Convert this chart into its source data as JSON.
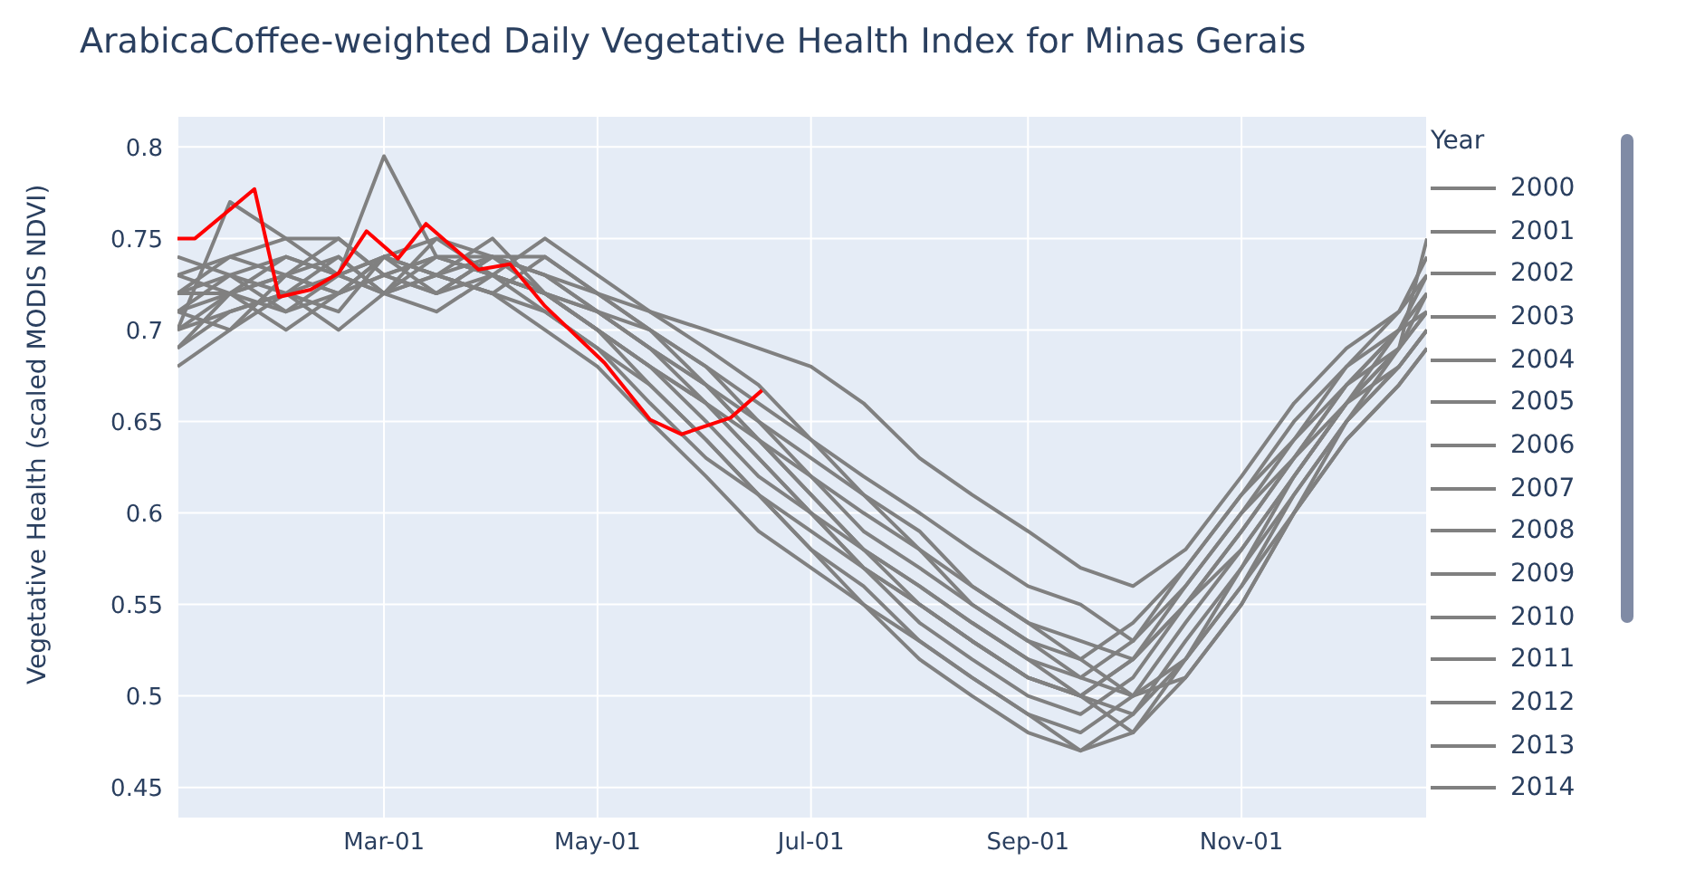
{
  "chart_data": {
    "type": "line",
    "title": "ArabicaCoffee-weighted Daily Vegetative Health Index for Minas Gerais",
    "ylabel": "Vegetative Health (scaled MODIS NDVI)",
    "legend_title": "Year",
    "legend": "right",
    "grid": true,
    "x": [
      "--01-01",
      "--01-16",
      "--02-01",
      "--02-16",
      "--03-01",
      "--03-16",
      "--04-01",
      "--04-16",
      "--05-01",
      "--05-16",
      "--06-01",
      "--06-16",
      "--07-01",
      "--07-16",
      "--08-01",
      "--08-16",
      "--09-01",
      "--09-16",
      "--10-01",
      "--10-16",
      "--11-01",
      "--11-16",
      "--12-01",
      "--12-16",
      "--12-24"
    ],
    "xlim": [
      "--01-01",
      "--12-24"
    ],
    "xticks": [
      {
        "value": "--03-01",
        "label": "Mar-01"
      },
      {
        "value": "--05-01",
        "label": "May-01"
      },
      {
        "value": "--07-01",
        "label": "Jul-01"
      },
      {
        "value": "--09-01",
        "label": "Sep-01"
      },
      {
        "value": "--11-01",
        "label": "Nov-01"
      }
    ],
    "ylim": [
      0.433,
      0.817
    ],
    "yticks": [
      0.45,
      0.5,
      0.55,
      0.6,
      0.65,
      0.7,
      0.75,
      0.8
    ],
    "series": [
      {
        "name": "2000",
        "color": "#808080",
        "values": [
          0.72,
          0.73,
          0.74,
          0.73,
          0.74,
          0.73,
          0.72,
          0.71,
          0.69,
          0.66,
          0.63,
          0.61,
          0.59,
          0.57,
          0.55,
          0.53,
          0.51,
          0.5,
          0.52,
          0.55,
          0.58,
          0.62,
          0.66,
          0.69,
          0.71
        ]
      },
      {
        "name": "2001",
        "color": "#808080",
        "values": [
          0.7,
          0.77,
          0.75,
          0.75,
          0.73,
          0.74,
          0.74,
          0.72,
          0.7,
          0.68,
          0.66,
          0.64,
          0.62,
          0.6,
          0.58,
          0.56,
          0.54,
          0.53,
          0.52,
          0.55,
          0.59,
          0.63,
          0.67,
          0.7,
          0.73
        ]
      },
      {
        "name": "2002",
        "color": "#808080",
        "values": [
          0.69,
          0.72,
          0.73,
          0.74,
          0.72,
          0.75,
          0.74,
          0.73,
          0.71,
          0.69,
          0.67,
          0.64,
          0.61,
          0.58,
          0.56,
          0.54,
          0.52,
          0.5,
          0.49,
          0.52,
          0.56,
          0.61,
          0.65,
          0.68,
          0.7
        ]
      },
      {
        "name": "2003",
        "color": "#808080",
        "values": [
          0.73,
          0.72,
          0.7,
          0.72,
          0.74,
          0.73,
          0.75,
          0.72,
          0.7,
          0.67,
          0.64,
          0.61,
          0.58,
          0.56,
          0.53,
          0.51,
          0.49,
          0.47,
          0.49,
          0.53,
          0.57,
          0.62,
          0.66,
          0.7,
          0.72
        ]
      },
      {
        "name": "2004",
        "color": "#808080",
        "values": [
          0.71,
          0.7,
          0.72,
          0.73,
          0.795,
          0.74,
          0.73,
          0.72,
          0.71,
          0.7,
          0.68,
          0.66,
          0.64,
          0.61,
          0.58,
          0.55,
          0.53,
          0.51,
          0.5,
          0.51,
          0.55,
          0.6,
          0.64,
          0.67,
          0.69
        ]
      },
      {
        "name": "2005",
        "color": "#808080",
        "values": [
          0.68,
          0.7,
          0.73,
          0.72,
          0.73,
          0.72,
          0.74,
          0.74,
          0.72,
          0.7,
          0.68,
          0.65,
          0.62,
          0.59,
          0.57,
          0.55,
          0.53,
          0.52,
          0.54,
          0.57,
          0.61,
          0.64,
          0.67,
          0.69,
          0.71
        ]
      },
      {
        "name": "2006",
        "color": "#808080",
        "values": [
          0.74,
          0.73,
          0.71,
          0.72,
          0.73,
          0.74,
          0.73,
          0.71,
          0.69,
          0.67,
          0.64,
          0.61,
          0.58,
          0.55,
          0.52,
          0.5,
          0.48,
          0.47,
          0.48,
          0.52,
          0.57,
          0.61,
          0.65,
          0.68,
          0.7
        ]
      },
      {
        "name": "2007",
        "color": "#808080",
        "values": [
          0.7,
          0.71,
          0.72,
          0.7,
          0.72,
          0.73,
          0.72,
          0.7,
          0.68,
          0.65,
          0.62,
          0.59,
          0.57,
          0.55,
          0.53,
          0.51,
          0.49,
          0.48,
          0.5,
          0.54,
          0.58,
          0.62,
          0.66,
          0.69,
          0.72
        ]
      },
      {
        "name": "2008",
        "color": "#808080",
        "values": [
          0.72,
          0.74,
          0.73,
          0.75,
          0.73,
          0.72,
          0.74,
          0.73,
          0.72,
          0.71,
          0.69,
          0.67,
          0.64,
          0.62,
          0.6,
          0.58,
          0.56,
          0.55,
          0.53,
          0.56,
          0.6,
          0.64,
          0.68,
          0.71,
          0.74
        ]
      },
      {
        "name": "2009",
        "color": "#808080",
        "values": [
          0.71,
          0.73,
          0.72,
          0.71,
          0.74,
          0.72,
          0.73,
          0.75,
          0.73,
          0.71,
          0.7,
          0.69,
          0.68,
          0.66,
          0.63,
          0.61,
          0.59,
          0.57,
          0.56,
          0.58,
          0.62,
          0.66,
          0.69,
          0.71,
          0.73
        ]
      },
      {
        "name": "2010",
        "color": "#808080",
        "values": [
          0.69,
          0.71,
          0.72,
          0.74,
          0.72,
          0.71,
          0.73,
          0.72,
          0.7,
          0.68,
          0.66,
          0.63,
          0.6,
          0.57,
          0.55,
          0.53,
          0.51,
          0.5,
          0.48,
          0.51,
          0.55,
          0.6,
          0.64,
          0.67,
          0.69
        ]
      },
      {
        "name": "2011",
        "color": "#808080",
        "values": [
          0.73,
          0.74,
          0.75,
          0.73,
          0.74,
          0.75,
          0.73,
          0.72,
          0.71,
          0.69,
          0.66,
          0.63,
          0.6,
          0.57,
          0.54,
          0.52,
          0.5,
          0.49,
          0.51,
          0.55,
          0.59,
          0.63,
          0.66,
          0.68,
          0.7
        ]
      },
      {
        "name": "2012",
        "color": "#808080",
        "values": [
          0.72,
          0.72,
          0.74,
          0.73,
          0.72,
          0.73,
          0.74,
          0.73,
          0.71,
          0.69,
          0.67,
          0.65,
          0.63,
          0.61,
          0.59,
          0.56,
          0.54,
          0.52,
          0.5,
          0.52,
          0.56,
          0.6,
          0.65,
          0.69,
          0.75
        ]
      },
      {
        "name": "2013",
        "color": "#808080",
        "values": [
          0.7,
          0.72,
          0.73,
          0.72,
          0.74,
          0.73,
          0.72,
          0.74,
          0.72,
          0.7,
          0.67,
          0.64,
          0.61,
          0.58,
          0.55,
          0.53,
          0.51,
          0.5,
          0.52,
          0.56,
          0.6,
          0.63,
          0.67,
          0.7,
          0.72
        ]
      },
      {
        "name": "2014",
        "color": "#808080",
        "values": [
          0.71,
          0.72,
          0.71,
          0.73,
          0.72,
          0.74,
          0.73,
          0.72,
          0.7,
          0.68,
          0.65,
          0.62,
          0.6,
          0.58,
          0.56,
          0.54,
          0.52,
          0.51,
          0.53,
          0.57,
          0.61,
          0.65,
          0.68,
          0.7,
          0.71
        ]
      },
      {
        "color": "#ff0000",
        "x": [
          "--01-01",
          "--01-06",
          "--01-23",
          "--01-30",
          "--02-08",
          "--02-16",
          "--02-24",
          "--03-05",
          "--03-13",
          "--03-28",
          "--04-06",
          "--04-16",
          "--05-03",
          "--05-16",
          "--05-25",
          "--06-08",
          "--06-17"
        ],
        "values": [
          0.75,
          0.75,
          0.777,
          0.718,
          0.722,
          0.731,
          0.754,
          0.739,
          0.758,
          0.733,
          0.736,
          0.713,
          0.682,
          0.651,
          0.643,
          0.652,
          0.667
        ]
      }
    ]
  }
}
